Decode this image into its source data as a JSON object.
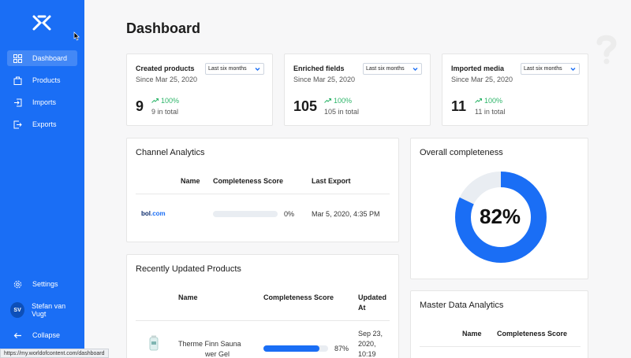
{
  "sidebar": {
    "items": [
      {
        "label": "Dashboard",
        "icon": "dashboard-icon",
        "active": true
      },
      {
        "label": "Products",
        "icon": "products-icon"
      },
      {
        "label": "Imports",
        "icon": "imports-icon"
      },
      {
        "label": "Exports",
        "icon": "exports-icon"
      }
    ],
    "settings_label": "Settings",
    "user_initials": "SV",
    "user_name": "Stefan van Vugt",
    "collapse_label": "Collapse"
  },
  "page": {
    "title": "Dashboard"
  },
  "stats": [
    {
      "title": "Created products",
      "since": "Since Mar 25, 2020",
      "range": "Last six months",
      "value": "9",
      "change": "100%",
      "total": "9 in total"
    },
    {
      "title": "Enriched fields",
      "since": "Since Mar 25, 2020",
      "range": "Last six months",
      "value": "105",
      "change": "100%",
      "total": "105 in total"
    },
    {
      "title": "Imported media",
      "since": "Since Mar 25, 2020",
      "range": "Last six months",
      "value": "11",
      "change": "100%",
      "total": "11 in total"
    }
  ],
  "channel": {
    "title": "Channel Analytics",
    "headers": [
      "Name",
      "Completeness Score",
      "Last Export"
    ],
    "rows": [
      {
        "name": "bol.com",
        "score": 0,
        "score_label": "0%",
        "last_export": "Mar 5, 2020, 4:35 PM"
      }
    ]
  },
  "overall": {
    "title": "Overall completeness",
    "value": 82,
    "label": "82%"
  },
  "recent": {
    "title": "Recently Updated Products",
    "headers": [
      "Name",
      "Completeness Score",
      "Updated",
      "At"
    ],
    "rows": [
      {
        "name_line1": "Therme Finn Sauna",
        "name_line2": "wer Gel",
        "score": 87,
        "score_label": "87%",
        "date1": "Sep 23,",
        "date2": "2020,",
        "date3": "10:19"
      }
    ]
  },
  "master": {
    "title": "Master Data Analytics",
    "headers": [
      "Name",
      "Completeness Score"
    ]
  },
  "status_url": "https://my.worldofcontent.com/dashboard",
  "colors": {
    "accent": "#1a6ef5",
    "positive": "#2eb56a"
  }
}
